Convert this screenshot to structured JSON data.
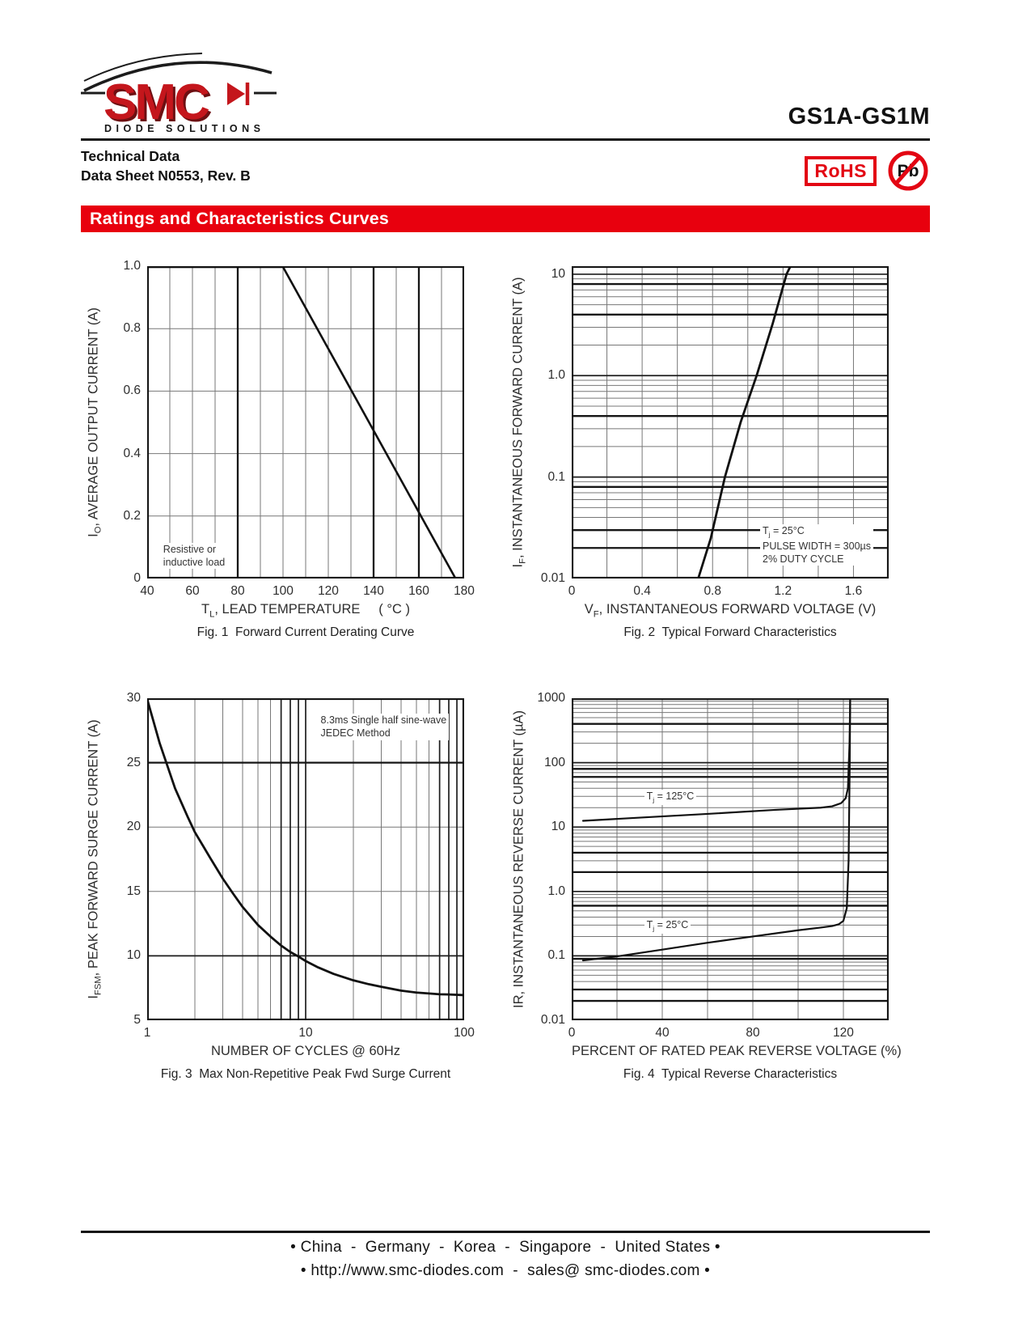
{
  "header": {
    "logo": {
      "brand": "SMC",
      "tagline": "DIODE SOLUTIONS"
    },
    "part_number": "GS1A-GS1M",
    "doc_line1": "Technical Data",
    "doc_line2": "Data Sheet N0553, Rev. B",
    "rohs_label": "RoHS",
    "pb_label": "Pb"
  },
  "section_title": "Ratings and Characteristics Curves",
  "footer": {
    "line1": "• China  -  Germany  -  Korea  -  Singapore  -  United States •",
    "line2": "• http://www.smc-diodes.com  -  sales@ smc-diodes.com •"
  },
  "chart_data": [
    {
      "type": "line",
      "caption": "Fig. 1  Forward Current Derating Curve",
      "ylabel": [
        {
          "t": "I"
        },
        {
          "t": "O",
          "sub": true
        },
        {
          "t": ", AVERAGE OUTPUT CURRENT (A)"
        }
      ],
      "xlabel": [
        {
          "t": "T"
        },
        {
          "t": "L",
          "sub": true
        },
        {
          "t": ", LEAD TEMPERATURE     ( °C )"
        }
      ],
      "x_axis": {
        "scale": "linear",
        "min": 40,
        "max": 180,
        "grid": [
          50,
          60,
          70,
          90,
          100,
          110,
          120,
          130,
          150,
          170
        ],
        "grid_dark": [
          80,
          140,
          160
        ],
        "ticks": [
          {
            "v": 40,
            "label": "40"
          },
          {
            "v": 60,
            "label": "60"
          },
          {
            "v": 80,
            "label": "80"
          },
          {
            "v": 100,
            "label": "100"
          },
          {
            "v": 120,
            "label": "120"
          },
          {
            "v": 140,
            "label": "140"
          },
          {
            "v": 160,
            "label": "160"
          },
          {
            "v": 180,
            "label": "180"
          }
        ]
      },
      "y_axis": {
        "scale": "linear",
        "min": 0,
        "max": 1.0,
        "grid": [
          0.2,
          0.4,
          0.6,
          0.8
        ],
        "ticks": [
          {
            "v": 1.0,
            "label": "1.0"
          },
          {
            "v": 0.8,
            "label": "0.8"
          },
          {
            "v": 0.6,
            "label": "0.6"
          },
          {
            "v": 0.4,
            "label": "0.4"
          },
          {
            "v": 0.2,
            "label": "0.2"
          },
          {
            "v": 0,
            "label": "0"
          }
        ]
      },
      "curves": [
        {
          "name": "derating",
          "width": 2.6,
          "points": [
            [
              40,
              1
            ],
            [
              100,
              1
            ],
            [
              176,
              0
            ]
          ]
        }
      ],
      "annotations": [
        {
          "x": 46,
          "y": 0.115,
          "lines": [
            "Resistive or",
            "inductive load"
          ]
        }
      ]
    },
    {
      "type": "line",
      "caption": "Fig. 2  Typical Forward Characteristics",
      "ylabel": [
        {
          "t": "I"
        },
        {
          "t": "F",
          "sub": true
        },
        {
          "t": ", INSTANTANEOUS FORWARD CURRENT (A)"
        }
      ],
      "xlabel": [
        {
          "t": "V"
        },
        {
          "t": "F",
          "sub": true
        },
        {
          "t": ", INSTANTANEOUS FORWARD VOLTAGE (V)"
        }
      ],
      "x_axis": {
        "scale": "linear",
        "min": 0,
        "max": 1.8,
        "grid": [
          0.2,
          0.4,
          0.6,
          0.8,
          1.0,
          1.2,
          1.4,
          1.6
        ],
        "ticks": [
          {
            "v": 0,
            "label": "0"
          },
          {
            "v": 0.4,
            "label": "0.4"
          },
          {
            "v": 0.8,
            "label": "0.8"
          },
          {
            "v": 1.2,
            "label": "1.2"
          },
          {
            "v": 1.6,
            "label": "1.6"
          }
        ]
      },
      "y_axis": {
        "scale": "log",
        "min": 0.01,
        "max": 12,
        "grid": [
          0.02,
          0.03,
          0.04,
          0.05,
          0.06,
          0.07,
          0.08,
          0.09,
          0.2,
          0.3,
          0.4,
          0.5,
          0.6,
          0.7,
          0.8,
          0.9,
          2,
          3,
          4,
          5,
          6,
          7,
          8,
          9
        ],
        "grid_major": [
          0.1,
          1,
          10
        ],
        "grid_dark": [
          8,
          4,
          0.4,
          0.08,
          0.03,
          0.02
        ],
        "ticks": [
          {
            "v": 10,
            "label": "10"
          },
          {
            "v": 1,
            "label": "1.0"
          },
          {
            "v": 0.1,
            "label": "0.1"
          },
          {
            "v": 0.01,
            "label": "0.01"
          }
        ]
      },
      "curves": [
        {
          "name": "Tj 25C forward",
          "width": 2.8,
          "points": [
            [
              0.72,
              0.01
            ],
            [
              0.79,
              0.025
            ],
            [
              0.87,
              0.1
            ],
            [
              0.96,
              0.35
            ],
            [
              1.05,
              1.0
            ],
            [
              1.14,
              3.2
            ],
            [
              1.22,
              10
            ],
            [
              1.24,
              12
            ]
          ]
        }
      ],
      "annotations": [
        {
          "x": 1.07,
          "y": 0.034,
          "lines": [
            [
              {
                "t": "T"
              },
              {
                "t": "j",
                "sub": true
              },
              {
                "t": " = 25°C"
              }
            ],
            "PULSE WIDTH = 300µs",
            "2% DUTY CYCLE"
          ]
        }
      ]
    },
    {
      "type": "line",
      "caption": "Fig. 3  Max Non-Repetitive Peak Fwd Surge Current",
      "ylabel": [
        {
          "t": "I"
        },
        {
          "t": "FSM",
          "sub": true
        },
        {
          "t": ", PEAK FORWARD SURGE CURRENT (A)"
        }
      ],
      "xlabel": "NUMBER OF CYCLES @ 60Hz",
      "x_axis": {
        "scale": "log",
        "min": 1,
        "max": 100,
        "grid": [
          2,
          3,
          4,
          5,
          6,
          20,
          30,
          40,
          50,
          60
        ],
        "grid_major": [
          7,
          8,
          9,
          10,
          70,
          80,
          90
        ],
        "ticks": [
          {
            "v": 1,
            "label": "1"
          },
          {
            "v": 10,
            "label": "10"
          },
          {
            "v": 100,
            "label": "100"
          }
        ]
      },
      "y_axis": {
        "scale": "linear",
        "min": 5,
        "max": 30,
        "grid": [
          15,
          20
        ],
        "grid_major": [
          10
        ],
        "grid_dark": [
          25
        ],
        "ticks": [
          {
            "v": 30,
            "label": "30"
          },
          {
            "v": 25,
            "label": "25"
          },
          {
            "v": 20,
            "label": "20"
          },
          {
            "v": 15,
            "label": "15"
          },
          {
            "v": 10,
            "label": "10"
          },
          {
            "v": 5,
            "label": "5"
          }
        ]
      },
      "curves": [
        {
          "name": "surge",
          "width": 2.8,
          "points": [
            [
              1,
              30
            ],
            [
              1.2,
              26.5
            ],
            [
              1.5,
              23
            ],
            [
              1.8,
              20.8
            ],
            [
              2,
              19.6
            ],
            [
              2.5,
              17.6
            ],
            [
              3,
              16
            ],
            [
              3.5,
              14.8
            ],
            [
              4,
              13.8
            ],
            [
              5,
              12.4
            ],
            [
              6,
              11.5
            ],
            [
              7,
              10.8
            ],
            [
              8,
              10.3
            ],
            [
              9,
              9.95
            ],
            [
              10,
              9.6
            ],
            [
              12,
              9.1
            ],
            [
              15,
              8.6
            ],
            [
              20,
              8.1
            ],
            [
              25,
              7.8
            ],
            [
              30,
              7.6
            ],
            [
              40,
              7.3
            ],
            [
              50,
              7.15
            ],
            [
              60,
              7.08
            ],
            [
              70,
              7.02
            ],
            [
              80,
              7.0
            ],
            [
              100,
              6.95
            ]
          ]
        }
      ],
      "annotations": [
        {
          "x": 12,
          "y": 28.8,
          "lines": [
            "8.3ms Single half sine-wave",
            "JEDEC Method"
          ]
        }
      ]
    },
    {
      "type": "line",
      "caption": "Fig. 4  Typical Reverse Characteristics",
      "ylabel": "IR, INSTANTANEOUS REVERSE CURRENT (µA)",
      "xlabel": "PERCENT OF RATED PEAK REVERSE VOLTAGE (%)",
      "x_axis": {
        "scale": "linear",
        "min": 0,
        "max": 140,
        "grid": [
          20,
          40,
          60,
          80,
          100,
          120
        ],
        "ticks": [
          {
            "v": 0,
            "label": "0"
          },
          {
            "v": 40,
            "label": "40"
          },
          {
            "v": 80,
            "label": "80"
          },
          {
            "v": 120,
            "label": "120"
          }
        ]
      },
      "y_axis": {
        "scale": "log",
        "min": 0.01,
        "max": 1000,
        "grid": [
          0.02,
          0.03,
          0.04,
          0.05,
          0.06,
          0.07,
          0.08,
          0.09,
          0.2,
          0.3,
          0.4,
          0.5,
          0.6,
          0.7,
          0.8,
          0.9,
          2,
          3,
          4,
          5,
          6,
          7,
          8,
          9,
          20,
          30,
          40,
          50,
          60,
          70,
          80,
          90,
          200,
          300,
          400,
          500,
          600,
          700,
          800,
          900
        ],
        "grid_major": [
          0.1,
          1,
          10,
          100
        ],
        "grid_dark": [
          400,
          80,
          60,
          4,
          2,
          0.6,
          0.09,
          0.03,
          0.02
        ],
        "ticks": [
          {
            "v": 1000,
            "label": "1000"
          },
          {
            "v": 100,
            "label": "100"
          },
          {
            "v": 10,
            "label": "10"
          },
          {
            "v": 1,
            "label": "1.0"
          },
          {
            "v": 0.1,
            "label": "0.1"
          },
          {
            "v": 0.01,
            "label": "0.01"
          }
        ]
      },
      "curves": [
        {
          "name": "Tj 125C reverse",
          "width": 2.2,
          "points": [
            [
              5,
              12.5
            ],
            [
              30,
              14
            ],
            [
              60,
              16
            ],
            [
              90,
              18.5
            ],
            [
              110,
              20
            ],
            [
              115,
              21
            ],
            [
              119,
              23.5
            ],
            [
              121,
              28
            ],
            [
              122,
              40
            ],
            [
              122.7,
              200
            ],
            [
              123,
              1000
            ]
          ]
        },
        {
          "name": "Tj 25C reverse",
          "width": 2.2,
          "points": [
            [
              5,
              0.085
            ],
            [
              20,
              0.098
            ],
            [
              40,
              0.125
            ],
            [
              60,
              0.16
            ],
            [
              80,
              0.2
            ],
            [
              100,
              0.25
            ],
            [
              110,
              0.275
            ],
            [
              115,
              0.29
            ],
            [
              118,
              0.31
            ],
            [
              120,
              0.35
            ],
            [
              121.5,
              0.55
            ],
            [
              122.3,
              3
            ],
            [
              122.8,
              100
            ],
            [
              123,
              1000
            ]
          ]
        }
      ],
      "annotations": [
        {
          "x": 32,
          "y": 38,
          "lines": [
            [
              {
                "t": "T"
              },
              {
                "t": "j",
                "sub": true
              },
              {
                "t": " = 125°C"
              }
            ]
          ]
        },
        {
          "x": 32,
          "y": 0.38,
          "lines": [
            [
              {
                "t": "T"
              },
              {
                "t": "j",
                "sub": true
              },
              {
                "t": " = 25°C"
              }
            ]
          ]
        }
      ]
    }
  ]
}
